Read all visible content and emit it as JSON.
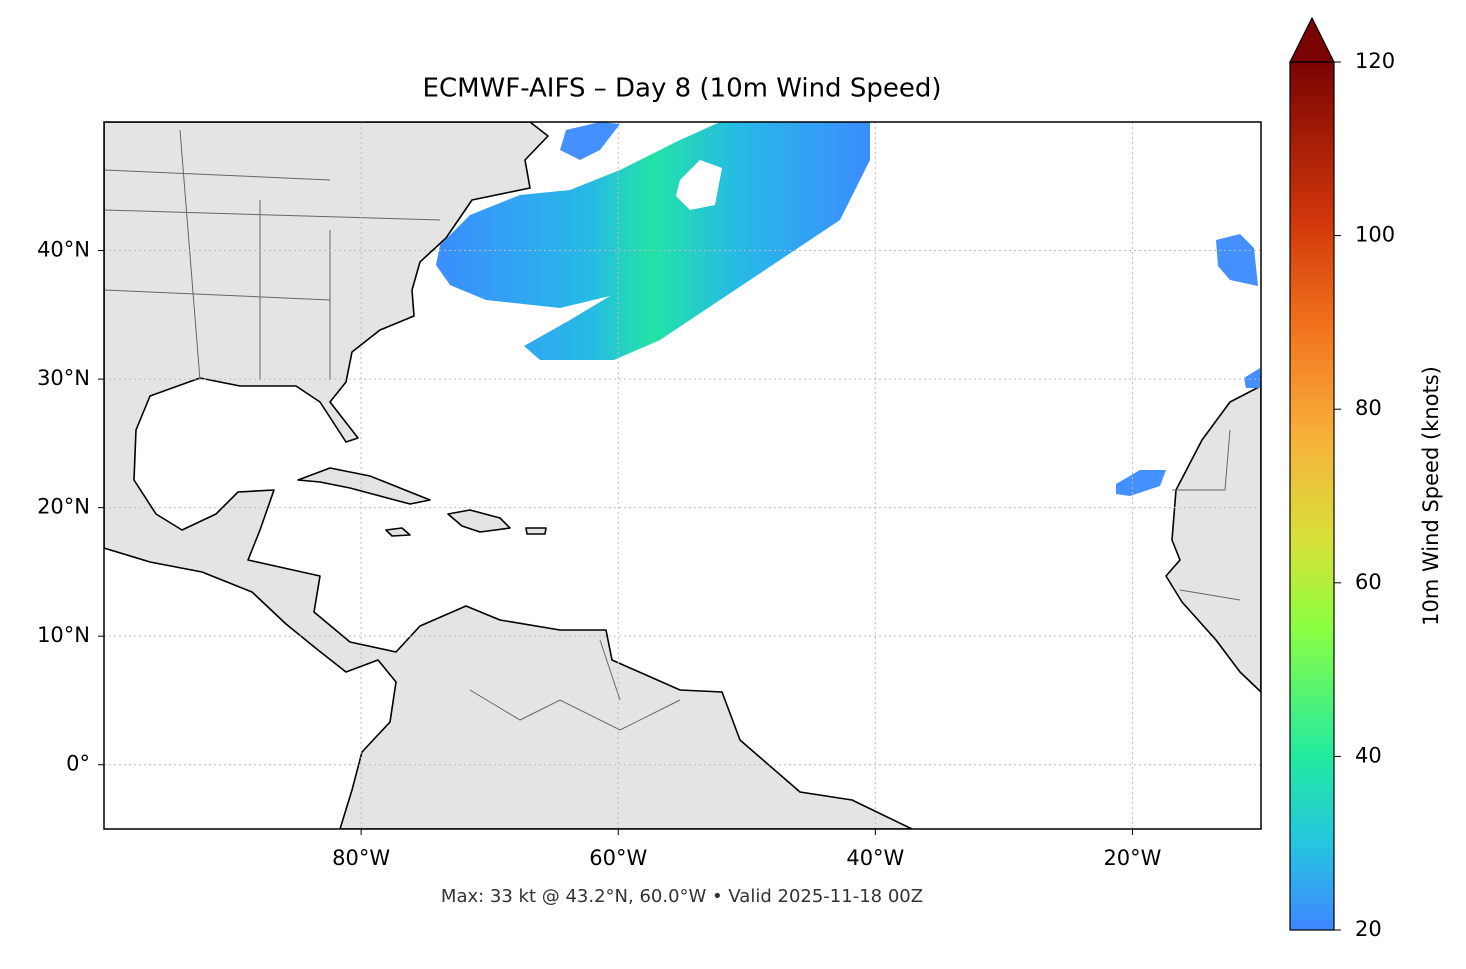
{
  "chart_data": {
    "type": "map",
    "title": "ECMWF-AIFS – Day 8 (10m Wind Speed)",
    "annotation": "Max: 33 kt @ 43.2°N, 60.0°W • Valid 2025-11-18 00Z",
    "xlim": [
      -100,
      -10
    ],
    "ylim": [
      -5,
      50
    ],
    "xticks": [
      {
        "value": -80,
        "label": "80°W"
      },
      {
        "value": -60,
        "label": "60°W"
      },
      {
        "value": -40,
        "label": "40°W"
      },
      {
        "value": -20,
        "label": "20°W"
      }
    ],
    "yticks": [
      {
        "value": 0,
        "label": "0°"
      },
      {
        "value": 10,
        "label": "10°N"
      },
      {
        "value": 20,
        "label": "20°N"
      },
      {
        "value": 30,
        "label": "30°N"
      },
      {
        "value": 40,
        "label": "40°N"
      }
    ],
    "grid": true,
    "colorbar": {
      "label": "10m Wind Speed (knots)",
      "lim": [
        20,
        120
      ],
      "ticks": [
        20,
        40,
        60,
        80,
        100,
        120
      ]
    }
  }
}
